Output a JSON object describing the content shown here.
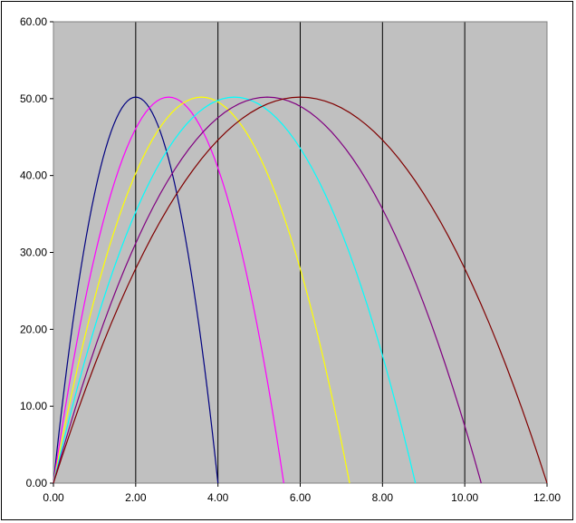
{
  "chart_data": {
    "type": "line",
    "title": "",
    "xlabel": "",
    "ylabel": "",
    "xlim": [
      0,
      12
    ],
    "ylim": [
      0,
      60
    ],
    "x_ticks": [
      "0.00",
      "2.00",
      "4.00",
      "6.00",
      "8.00",
      "10.00",
      "12.00"
    ],
    "y_ticks": [
      "0.00",
      "10.00",
      "20.00",
      "30.00",
      "40.00",
      "50.00",
      "60.00"
    ],
    "grid": {
      "vertical": true,
      "horizontal": false
    },
    "legend": "none",
    "plot_background": "#C0C0C0",
    "series": [
      {
        "color": "#000080",
        "peak_x": 2.0,
        "peak_y": 50.2,
        "x_end": 4.0
      },
      {
        "color": "#FF00FF",
        "peak_x": 2.8,
        "peak_y": 50.2,
        "x_end": 5.6
      },
      {
        "color": "#FFFF00",
        "peak_x": 3.6,
        "peak_y": 50.2,
        "x_end": 7.2
      },
      {
        "color": "#00FFFF",
        "peak_x": 4.4,
        "peak_y": 50.2,
        "x_end": 8.8
      },
      {
        "color": "#800080",
        "peak_x": 5.2,
        "peak_y": 50.2,
        "x_end": 10.4
      },
      {
        "color": "#800000",
        "peak_x": 6.0,
        "peak_y": 50.2,
        "x_end": 12.0
      }
    ]
  }
}
